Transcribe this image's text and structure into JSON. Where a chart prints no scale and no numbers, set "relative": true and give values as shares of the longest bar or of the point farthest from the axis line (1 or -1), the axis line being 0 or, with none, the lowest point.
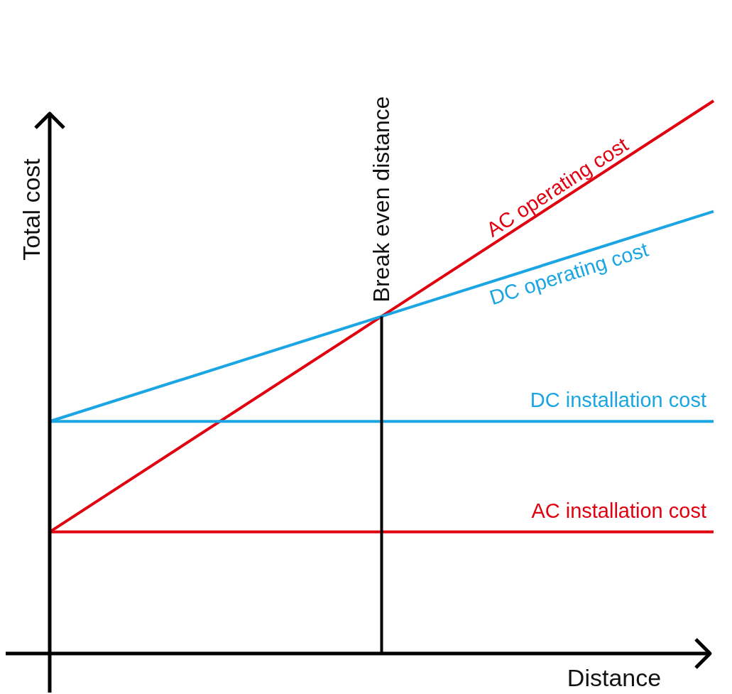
{
  "chart_data": {
    "type": "line",
    "relative": true,
    "xlabel": "Distance",
    "ylabel": "Total cost",
    "categories": [
      null,
      null,
      null
    ],
    "series": [
      {
        "name": "AC operating cost",
        "color": "#e0000f",
        "values": [
          0.22,
          0.61,
          1.0
        ]
      },
      {
        "name": "DC operating cost",
        "color": "#1ba6e3",
        "values": [
          0.42,
          0.61,
          0.8
        ]
      },
      {
        "name": "DC installation cost",
        "color": "#1ba6e3",
        "values": [
          0.42,
          0.42,
          0.42
        ]
      },
      {
        "name": "AC installation cost",
        "color": "#e0000f",
        "values": [
          0.22,
          0.22,
          0.22
        ]
      }
    ],
    "annotations": [
      "Break even distance"
    ]
  }
}
